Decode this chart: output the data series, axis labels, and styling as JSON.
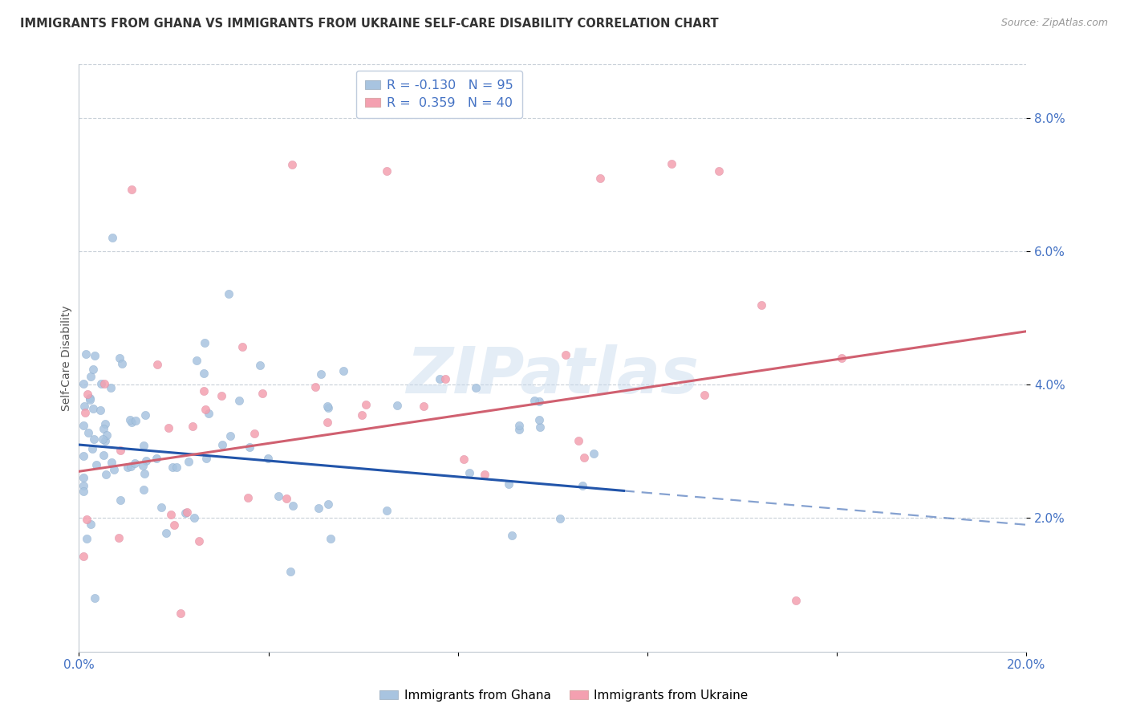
{
  "title": "IMMIGRANTS FROM GHANA VS IMMIGRANTS FROM UKRAINE SELF-CARE DISABILITY CORRELATION CHART",
  "source": "Source: ZipAtlas.com",
  "ylabel": "Self-Care Disability",
  "xlim": [
    0.0,
    0.2
  ],
  "ylim": [
    0.0,
    0.088
  ],
  "yticks": [
    0.02,
    0.04,
    0.06,
    0.08
  ],
  "ytick_labels": [
    "2.0%",
    "4.0%",
    "6.0%",
    "8.0%"
  ],
  "xticks": [
    0.0,
    0.04,
    0.08,
    0.12,
    0.16,
    0.2
  ],
  "xtick_labels": [
    "0.0%",
    "",
    "",
    "",
    "",
    "20.0%"
  ],
  "ghana_R": -0.13,
  "ghana_N": 95,
  "ukraine_R": 0.359,
  "ukraine_N": 40,
  "ghana_color": "#a8c4e0",
  "ukraine_color": "#f4a0b0",
  "ghana_line_color": "#2255aa",
  "ukraine_line_color": "#d06070",
  "watermark": "ZIPatlas",
  "ghana_seed": 42,
  "ukraine_seed": 17
}
